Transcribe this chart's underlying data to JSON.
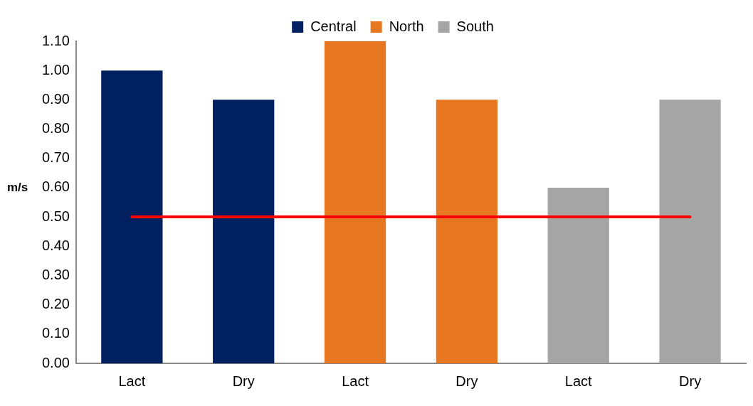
{
  "chart_data": {
    "type": "bar",
    "ylabel": "m/s",
    "categories": [
      "Lact",
      "Dry",
      "Lact",
      "Dry",
      "Lact",
      "Dry"
    ],
    "series": [
      {
        "name": "Central",
        "color": "#002060",
        "values": [
          1.0,
          0.9,
          null,
          null,
          null,
          null
        ]
      },
      {
        "name": "North",
        "color": "#e87722",
        "values": [
          null,
          null,
          1.1,
          0.9,
          null,
          null
        ]
      },
      {
        "name": "South",
        "color": "#a5a5a5",
        "values": [
          null,
          null,
          null,
          null,
          0.6,
          0.9
        ]
      }
    ],
    "ylim": [
      0,
      1.1
    ],
    "yticks": [
      {
        "value": 0,
        "label": "0.00"
      },
      {
        "value": 0.1,
        "label": "0.10"
      },
      {
        "value": 0.2,
        "label": "0.20"
      },
      {
        "value": 0.3,
        "label": "0.30"
      },
      {
        "value": 0.4,
        "label": "0.40"
      },
      {
        "value": 0.5,
        "label": "0.50"
      },
      {
        "value": 0.6,
        "label": "0.60"
      },
      {
        "value": 0.7,
        "label": "0.70"
      },
      {
        "value": 0.8,
        "label": "0.80"
      },
      {
        "value": 0.9,
        "label": "0.90"
      },
      {
        "value": 1.0,
        "label": "1.00"
      },
      {
        "value": 1.1,
        "label": "1.10"
      }
    ],
    "ref_lines": [
      {
        "axis": "y",
        "value": 0.5,
        "color": "#ff0000"
      }
    ],
    "grid": false,
    "legend": "top"
  }
}
